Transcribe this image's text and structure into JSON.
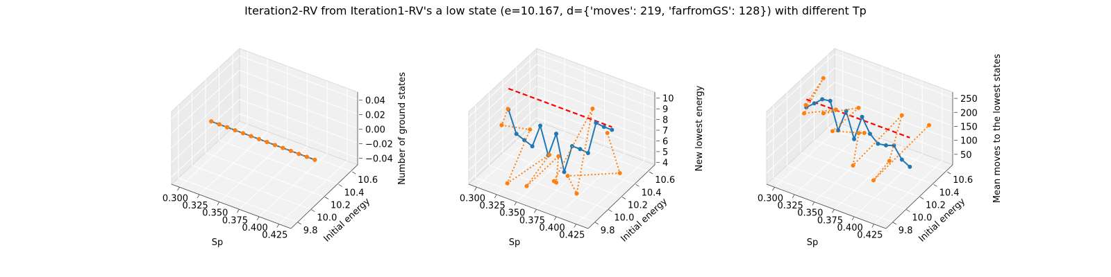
{
  "figure": {
    "title": "Iteration2-RV from Iteration1-RV's a low state (e=10.167, d={'moves': 219, 'farfromGS': 128}) with different Tp"
  },
  "chart_data": [
    {
      "type": "line3d",
      "xlabel": "Sp",
      "ylabel": "Initial energy",
      "zlabel": "Number of ground states",
      "x_ticks": [
        "0.300",
        "0.325",
        "0.350",
        "0.375",
        "0.400",
        "0.425"
      ],
      "y_ticks": [
        "9.8",
        "10.0",
        "10.2",
        "10.4",
        "10.6"
      ],
      "z_ticks": [
        "−0.04",
        "−0.02",
        "0.00",
        "0.02",
        "0.04"
      ],
      "xlim": [
        0.29,
        0.44
      ],
      "ylim": [
        9.7,
        10.7
      ],
      "zlim": [
        -0.05,
        0.05
      ],
      "x": [
        0.3,
        0.31,
        0.32,
        0.33,
        0.34,
        0.35,
        0.36,
        0.37,
        0.38,
        0.39,
        0.4,
        0.41,
        0.42,
        0.43
      ],
      "series": [
        {
          "style": "solid",
          "color": "#1f77b4",
          "y_const": 10.167,
          "z": [
            0,
            0,
            0,
            0,
            0,
            0,
            0,
            0,
            0,
            0,
            0,
            0,
            0,
            0
          ]
        },
        {
          "style": "dotted",
          "color": "#ff7f0e",
          "y_const": 10.167,
          "z": [
            0,
            0,
            0,
            0,
            0,
            0,
            0,
            0,
            0,
            0,
            0,
            0,
            0,
            0
          ]
        }
      ]
    },
    {
      "type": "line3d",
      "xlabel": "Sp",
      "ylabel": "Initial energy",
      "zlabel": "New lowest energy",
      "x_ticks": [
        "0.300",
        "0.325",
        "0.350",
        "0.375",
        "0.400",
        "0.425"
      ],
      "y_ticks": [
        "9.8",
        "10.0",
        "10.2",
        "10.4",
        "10.6"
      ],
      "z_ticks": [
        "4",
        "5",
        "6",
        "7",
        "8",
        "9",
        "10"
      ],
      "xlim": [
        0.29,
        0.44
      ],
      "ylim": [
        9.7,
        10.7
      ],
      "zlim": [
        3.7,
        10.5
      ],
      "x": [
        0.3,
        0.31,
        0.32,
        0.33,
        0.34,
        0.35,
        0.36,
        0.37,
        0.38,
        0.39,
        0.4,
        0.41,
        0.42,
        0.43
      ],
      "reference": {
        "style": "dashed",
        "color": "#ff0000",
        "y": 10.167,
        "z": 10.167
      },
      "series": [
        {
          "style": "solid",
          "color": "#1f77b4",
          "y_const": 10.167,
          "z": [
            8.2,
            6.2,
            5.9,
            5.6,
            7.8,
            5.3,
            7.6,
            4.3,
            7.0,
            7.0,
            6.9,
            10.0,
            9.9,
            9.9
          ]
        },
        {
          "style": "dotted",
          "color": "#ff7f0e",
          "y": [
            10.16,
            9.95,
            10.25,
            9.8,
            10.3,
            9.85,
            10.2,
            10.05,
            9.9,
            10.35,
            10.0,
            9.75,
            10.4,
            10.1
          ],
          "z": [
            8.3,
            8.3,
            6.4,
            4.3,
            4.3,
            4.3,
            5.3,
            4.0,
            5.3,
            9.7,
            4.1,
            7.5,
            4.2,
            10.0
          ]
        }
      ]
    },
    {
      "type": "line3d",
      "xlabel": "Sp",
      "ylabel": "Initial energy",
      "zlabel": "Mean moves to the lowest states",
      "x_ticks": [
        "0.300",
        "0.325",
        "0.350",
        "0.375",
        "0.400",
        "0.425"
      ],
      "y_ticks": [
        "9.8",
        "10.0",
        "10.2",
        "10.4",
        "10.6"
      ],
      "z_ticks": [
        "50",
        "100",
        "150",
        "200",
        "250"
      ],
      "xlim": [
        0.29,
        0.44
      ],
      "ylim": [
        9.7,
        10.7
      ],
      "zlim": [
        10,
        270
      ],
      "x": [
        0.3,
        0.31,
        0.32,
        0.33,
        0.34,
        0.35,
        0.36,
        0.37,
        0.38,
        0.39,
        0.4,
        0.41,
        0.42,
        0.43
      ],
      "reference": {
        "style": "dashed",
        "color": "#ff0000",
        "y": 10.167,
        "z": 219
      },
      "series": [
        {
          "style": "solid",
          "color": "#1f77b4",
          "y_const": 10.167,
          "z": [
            190,
            215,
            240,
            245,
            150,
            230,
            140,
            230,
            180,
            155,
            160,
            170,
            130,
            115
          ]
        },
        {
          "style": "dotted",
          "color": "#ff7f0e",
          "y": [
            10.16,
            10.3,
            9.9,
            10.25,
            9.95,
            10.35,
            9.85,
            10.2,
            10.0,
            9.8,
            10.4,
            10.1,
            9.75,
            10.45
          ],
          "z": [
            200,
            275,
            250,
            195,
            260,
            200,
            240,
            165,
            220,
            160,
            215,
            130,
            150,
            200
          ]
        }
      ]
    }
  ]
}
